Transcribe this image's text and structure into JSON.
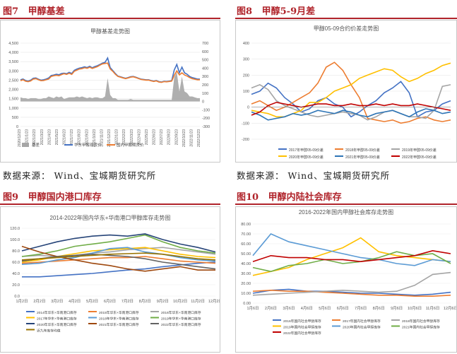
{
  "figures": [
    {
      "label": "图7",
      "title": "甲醇基差"
    },
    {
      "label": "图8",
      "title": "甲醇5-9月差"
    },
    {
      "label": "图9",
      "title": "甲醇国内港口库存"
    },
    {
      "label": "图10",
      "title": "甲醇内陆社会库存"
    }
  ],
  "source_text": "数据来源：  Wind、宝城期货研究所",
  "chart_data": [
    {
      "type": "line",
      "title": "甲醇基差走势图",
      "ylim": [
        0,
        4500
      ],
      "y2lim": [
        -300,
        700
      ],
      "yticks": [
        0,
        500,
        1000,
        1500,
        2000,
        2500,
        3000,
        3500,
        4000,
        4500
      ],
      "yticklabels": [
        "0",
        "500",
        "1,000",
        "1,500",
        "2,000",
        "2,500",
        "3,000",
        "3,500",
        "4,000",
        "4,500"
      ],
      "y2ticks": [
        -300,
        -200,
        -100,
        0,
        100,
        200,
        300,
        400,
        500,
        600,
        700
      ],
      "xticklabels": [
        "2020/12/23",
        "2021/1/23",
        "2021/2/23",
        "2021/3/23",
        "2021/4/23",
        "2021/5/23",
        "2021/6/23",
        "2021/7/23",
        "2021/8/23",
        "2021/9/23",
        "2021/10/23",
        "2021/11/23",
        "2021/12/23",
        "2022/1/23",
        "2022/2/23",
        "2022/3/23",
        "2022/4/23",
        "2022/5/23",
        "2022/6/23",
        "2022/7/23",
        "2022/8/23",
        "2022/9/23",
        "2022/10/23",
        "2022/11/23",
        "2022/12/23"
      ],
      "series": [
        {
          "name": "华东甲醇现货价",
          "axis": "left",
          "color": "#4472c4",
          "values": [
            2520,
            2560,
            2480,
            2450,
            2500,
            2600,
            2620,
            2550,
            2500,
            2520,
            2560,
            2620,
            2750,
            2780,
            2820,
            2790,
            2860,
            2880,
            2850,
            2920,
            2860,
            3030,
            3100,
            3150,
            3180,
            3220,
            3180,
            3250,
            3170,
            3230,
            3280,
            3350,
            3420,
            3460,
            3700,
            3180,
            3020,
            2860,
            2720,
            2680,
            2640,
            2600,
            2640,
            2690,
            2700,
            2660,
            2610,
            2560,
            2540,
            2520,
            2520,
            2480,
            2450,
            2480,
            2420,
            2400,
            2440,
            2430,
            2450,
            2470,
            3050,
            3350,
            2900,
            3200,
            2900,
            2820,
            2700,
            2640,
            2600,
            2560,
            2560
          ]
        },
        {
          "name": "国内甲醇期货价",
          "axis": "left",
          "color": "#ed7d31",
          "values": [
            2470,
            2520,
            2440,
            2420,
            2460,
            2560,
            2580,
            2520,
            2470,
            2480,
            2520,
            2560,
            2700,
            2740,
            2760,
            2740,
            2800,
            2850,
            2810,
            2870,
            2810,
            2980,
            3040,
            3100,
            3120,
            3170,
            3140,
            3200,
            3130,
            3180,
            3230,
            3310,
            3380,
            3400,
            3420,
            3100,
            2980,
            2820,
            2700,
            2660,
            2620,
            2580,
            2620,
            2660,
            2680,
            2640,
            2590,
            2540,
            2520,
            2500,
            2500,
            2460,
            2430,
            2460,
            2400,
            2380,
            2420,
            2410,
            2430,
            2450,
            2760,
            3000,
            2780,
            2900,
            2780,
            2720,
            2640,
            2580,
            2550,
            2520,
            2520
          ]
        },
        {
          "name": "基差",
          "axis": "right",
          "type": "area",
          "color": "#a6a6a6",
          "values": [
            50,
            40,
            40,
            30,
            40,
            40,
            40,
            30,
            30,
            40,
            40,
            60,
            50,
            40,
            60,
            50,
            60,
            30,
            40,
            50,
            50,
            50,
            60,
            50,
            60,
            50,
            40,
            50,
            40,
            50,
            50,
            40,
            40,
            60,
            280,
            80,
            40,
            40,
            20,
            20,
            20,
            20,
            20,
            30,
            20,
            20,
            20,
            20,
            20,
            20,
            20,
            20,
            20,
            20,
            20,
            20,
            20,
            20,
            20,
            20,
            290,
            350,
            120,
            300,
            120,
            100,
            60,
            60,
            50,
            40,
            40
          ]
        }
      ],
      "legend": [
        "基差",
        "华东甲醇现货价",
        "国内甲醇期货价"
      ]
    },
    {
      "type": "line",
      "title": "甲醇05-09合约价差走势图",
      "ylim": [
        -200,
        400
      ],
      "yticks": [
        -200,
        -100,
        0,
        100,
        200,
        300,
        400
      ],
      "series": [
        {
          "name": "2017年甲醇05-09价差",
          "color": "#4472c4",
          "values": [
            80,
            100,
            150,
            120,
            60,
            20,
            -30,
            -10,
            40,
            60,
            20,
            0,
            -60,
            -30,
            10,
            40,
            90,
            120,
            160,
            90,
            -60,
            -30,
            -20,
            20,
            40
          ]
        },
        {
          "name": "2018年甲醇05-09价差",
          "color": "#ed7d31",
          "values": [
            20,
            40,
            10,
            -20,
            0,
            30,
            60,
            90,
            150,
            250,
            280,
            230,
            140,
            60,
            -70,
            -80,
            -90,
            -80,
            -100,
            -90,
            -70,
            -60,
            -80,
            -90,
            -80
          ]
        },
        {
          "name": "2019年甲醇05-09价差",
          "color": "#a5a5a5",
          "values": [
            120,
            140,
            110,
            40,
            10,
            -10,
            -30,
            -50,
            -60,
            -50,
            -40,
            -30,
            -40,
            -50,
            -80,
            -60,
            -30,
            -20,
            -40,
            -60,
            -60,
            -70,
            -20,
            130,
            140
          ]
        },
        {
          "name": "2020年甲醇05-09价差",
          "color": "#ffc000",
          "values": [
            -20,
            -30,
            -40,
            -60,
            -60,
            -40,
            -20,
            30,
            30,
            60,
            100,
            120,
            140,
            180,
            200,
            220,
            240,
            230,
            190,
            160,
            180,
            210,
            230,
            260,
            275
          ]
        },
        {
          "name": "2021年甲醇05-09价差",
          "color": "#2e75b6",
          "values": [
            -30,
            -50,
            -80,
            -70,
            -60,
            -40,
            -50,
            -40,
            -20,
            -30,
            -40,
            -20,
            -30,
            -50,
            -60,
            -40,
            -30,
            -20,
            -40,
            -60,
            -30,
            -10,
            -20,
            -40,
            -30
          ]
        },
        {
          "name": "2022年甲醇05-09价差",
          "color": "#c00000",
          "values": [
            -50,
            -30,
            10,
            30,
            20,
            10,
            0,
            10,
            20,
            20,
            10,
            10,
            20,
            10,
            10,
            20,
            10,
            20,
            10,
            10,
            20,
            10,
            0,
            -10,
            -20
          ]
        }
      ]
    },
    {
      "type": "line",
      "title": "2014-2022年国内华东+华南港口甲醇库存走势图",
      "ylim": [
        0,
        120
      ],
      "yticks": [
        0,
        20,
        40,
        60,
        80,
        100,
        120
      ],
      "yticklabels": [
        "0.0",
        "20.0",
        "40.0",
        "60.0",
        "80.0",
        "100.0",
        "120.0"
      ],
      "xticklabels": [
        "1月2日",
        "2月2日",
        "3月2日",
        "4月2日",
        "5月2日",
        "6月2日",
        "7月2日",
        "8月2日",
        "9月2日",
        "10月2日",
        "11月2日",
        "12月2日"
      ],
      "series": [
        {
          "name": "2014年华东+华南港口库存",
          "color": "#4472c4",
          "values": [
            34,
            34,
            36,
            38,
            40,
            43,
            46,
            48,
            52,
            55,
            58,
            60
          ]
        },
        {
          "name": "2015年华东+华南港口库存",
          "color": "#ed7d31",
          "values": [
            58,
            60,
            62,
            64,
            66,
            68,
            68,
            70,
            66,
            62,
            60,
            58
          ]
        },
        {
          "name": "2016年华东+华南港口库存",
          "color": "#a5a5a5",
          "values": [
            70,
            72,
            70,
            72,
            76,
            78,
            82,
            84,
            86,
            82,
            78,
            74
          ]
        },
        {
          "name": "2017年华东+华南港口库存",
          "color": "#ffc000",
          "values": [
            60,
            64,
            70,
            75,
            80,
            82,
            84,
            86,
            80,
            74,
            70,
            68
          ]
        },
        {
          "name": "2018年华东+华南港口库存",
          "color": "#5b9bd5",
          "values": [
            56,
            58,
            64,
            68,
            76,
            84,
            86,
            78,
            74,
            68,
            64,
            62
          ]
        },
        {
          "name": "2019年华东+华南港口库存",
          "color": "#70ad47",
          "values": [
            70,
            74,
            80,
            88,
            92,
            96,
            102,
            108,
            96,
            86,
            80,
            76
          ]
        },
        {
          "name": "2020年华东+华南港口库存",
          "color": "#264478",
          "values": [
            80,
            88,
            96,
            102,
            106,
            108,
            106,
            110,
            100,
            92,
            86,
            78
          ]
        },
        {
          "name": "2021年华东+华南港口库存",
          "color": "#9e480e",
          "values": [
            88,
            78,
            70,
            64,
            58,
            54,
            48,
            44,
            48,
            52,
            46,
            46
          ]
        },
        {
          "name": "2022年华东+华南港口库存",
          "color": "#636363",
          "values": [
            62,
            66,
            70,
            72,
            74,
            72,
            70,
            66,
            60,
            56,
            52,
            48
          ]
        },
        {
          "name": "近九年库存均值",
          "color": "#997300",
          "values": [
            64,
            66,
            68,
            70,
            72,
            74,
            75,
            76,
            74,
            70,
            66,
            64
          ]
        }
      ]
    },
    {
      "type": "line",
      "title": "2016-2022年国内甲醇社会库存走势图",
      "ylim": [
        0,
        80
      ],
      "yticks": [
        0,
        10,
        20,
        30,
        40,
        50,
        60,
        70,
        80
      ],
      "yticklabels": [
        "0.00",
        "10.00",
        "20.00",
        "30.00",
        "40.00",
        "50.00",
        "60.00",
        "70.00",
        "80.00"
      ],
      "xticklabels": [
        "1月6日",
        "2月6日",
        "3月6日",
        "4月6日",
        "5月6日",
        "6月6日",
        "7月6日",
        "8月6日",
        "9月6日",
        "10月6日",
        "11月6日",
        "12月6日"
      ],
      "series": [
        {
          "name": "2016年国内社会甲醇库存",
          "color": "#4472c4",
          "values": [
            10,
            13,
            14,
            12,
            12,
            11,
            10,
            10,
            9,
            8,
            9,
            11
          ]
        },
        {
          "name": "2017年国内社会甲醇库存",
          "color": "#ed7d31",
          "values": [
            12,
            13,
            12,
            12,
            11,
            10,
            9,
            8,
            8,
            7,
            7,
            8
          ]
        },
        {
          "name": "2018年国内社会甲醇库存",
          "color": "#a5a5a5",
          "values": [
            8,
            9,
            10,
            11,
            12,
            13,
            12,
            11,
            12,
            18,
            29,
            31
          ]
        },
        {
          "name": "2019年国内社会甲醇库存",
          "color": "#ffc000",
          "values": [
            28,
            32,
            36,
            44,
            50,
            56,
            66,
            52,
            48,
            46,
            44,
            42
          ]
        },
        {
          "name": "2020年国内社会甲醇库存",
          "color": "#5b9bd5",
          "values": [
            48,
            70,
            62,
            58,
            54,
            50,
            46,
            44,
            40,
            38,
            44,
            42
          ]
        },
        {
          "name": "2021年国内社会甲醇库存",
          "color": "#70ad47",
          "values": [
            36,
            32,
            38,
            40,
            44,
            40,
            42,
            46,
            52,
            48,
            50,
            40
          ]
        },
        {
          "name": "2022年国内社会甲醇库存",
          "color": "#c00000",
          "values": [
            42,
            48,
            46,
            46,
            44,
            44,
            42,
            44,
            46,
            48,
            53,
            50
          ]
        }
      ]
    }
  ]
}
